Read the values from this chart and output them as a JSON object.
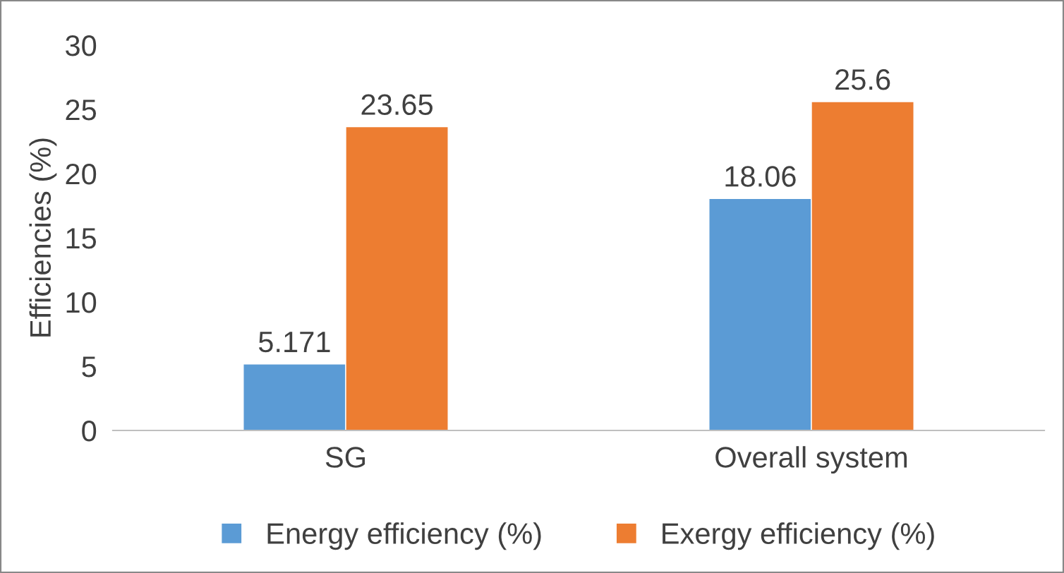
{
  "chart_data": {
    "type": "bar",
    "ylabel": "Efficiencies (%)",
    "categories": [
      "SG",
      "Overall system"
    ],
    "series": [
      {
        "name": "Energy efficiency (%)",
        "color": "#5b9bd5",
        "values": [
          5.171,
          18.06
        ]
      },
      {
        "name": "Exergy efficiency (%)",
        "color": "#ed7d31",
        "values": [
          23.65,
          25.6
        ]
      }
    ],
    "ylim": [
      0,
      30
    ],
    "yticks": [
      0,
      5,
      10,
      15,
      20,
      25,
      30
    ],
    "grid": false,
    "legend": "bottom",
    "data_labels": true
  }
}
